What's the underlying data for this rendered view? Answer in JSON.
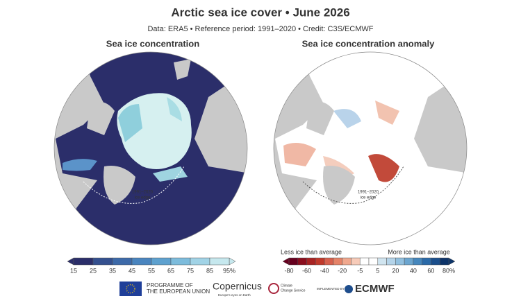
{
  "header": {
    "title": "Arctic sea ice cover • June 2026",
    "subtitle": "Data: ERA5 • Reference period: 1991–2020 • Credit: C3S/ECMWF"
  },
  "panels": [
    {
      "title": "Sea ice concentration",
      "annotation": [
        "1991–2020",
        "ice edge"
      ],
      "colorbar": {
        "ticks": [
          "15",
          "25",
          "35",
          "45",
          "55",
          "65",
          "75",
          "85",
          "95%"
        ]
      }
    },
    {
      "title": "Sea ice concentration anomaly",
      "annotation": [
        "1991–2020",
        "ice edge"
      ],
      "colorbar": {
        "left_label": "Less ice than average",
        "right_label": "More ice than average",
        "ticks": [
          "-80",
          "-60",
          "-40",
          "-20",
          "-5",
          "5",
          "20",
          "40",
          "60",
          "80%"
        ]
      }
    }
  ],
  "footer": {
    "eu": [
      "PROGRAMME OF",
      "THE EUROPEAN UNION"
    ],
    "copernicus": "Copernicus",
    "copernicus_tagline": "Europe's eyes on Earth",
    "c3s": [
      "Climate",
      "Change Service"
    ],
    "implemented": "IMPLEMENTED BY",
    "ecmwf": "ECMWF"
  }
}
